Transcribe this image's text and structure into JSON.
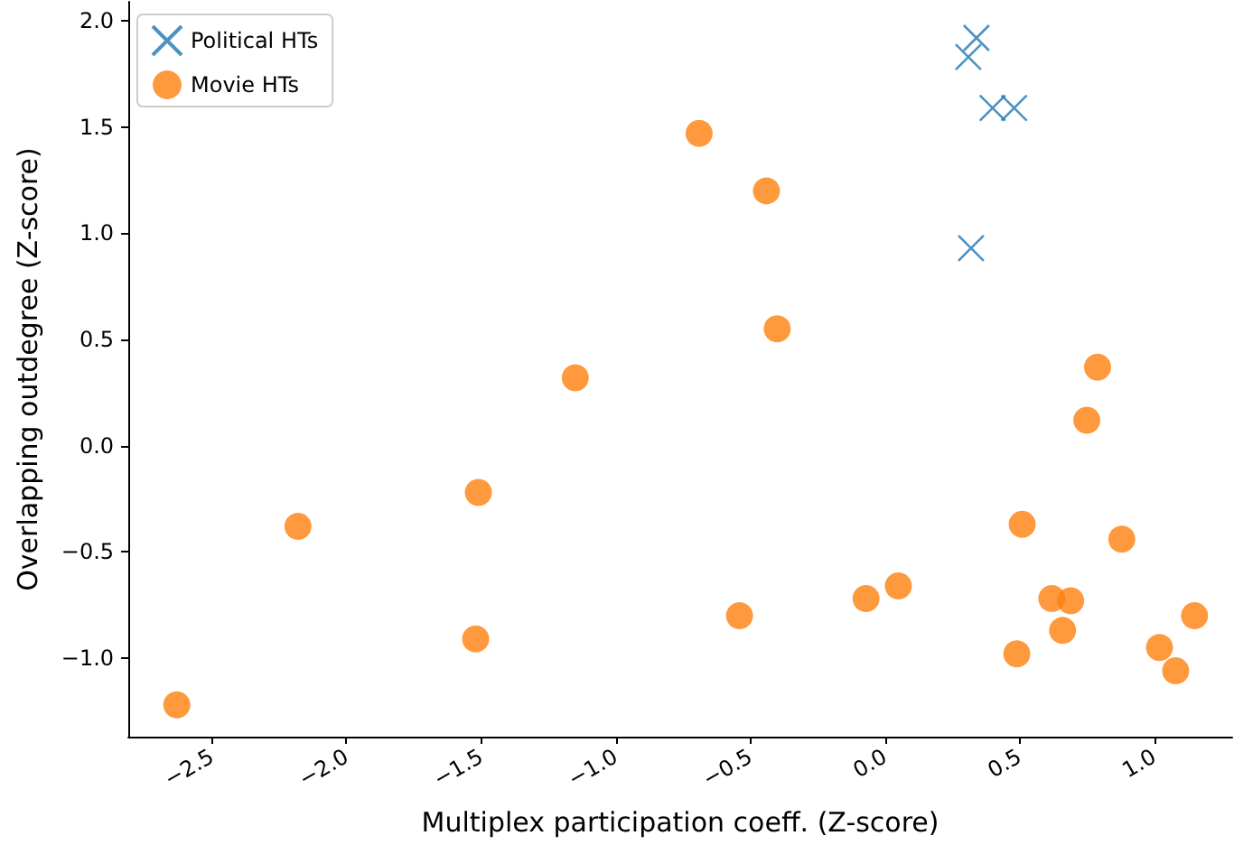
{
  "chart_data": {
    "type": "scatter",
    "xlabel": "Multiplex participation coeff. (Z-score)",
    "ylabel": "Overlapping outdegree (Z-score)",
    "xlim": [
      -2.81,
      1.29
    ],
    "xticks": [
      {
        "value": -2.5,
        "label": "−2.5"
      },
      {
        "value": -2.0,
        "label": "−2.0"
      },
      {
        "value": -1.5,
        "label": "−1.5"
      },
      {
        "value": -1.0,
        "label": "−1.0"
      },
      {
        "value": -0.5,
        "label": "−0.5"
      },
      {
        "value": 0.0,
        "label": "0.0"
      },
      {
        "value": 0.5,
        "label": "0.5"
      },
      {
        "value": 1.0,
        "label": "1.0"
      }
    ],
    "ylim": [
      -1.37,
      2.09
    ],
    "yticks": [
      {
        "value": -1.0,
        "label": "−1.0"
      },
      {
        "value": -0.5,
        "label": "−0.5"
      },
      {
        "value": 0.0,
        "label": "0.0"
      },
      {
        "value": 0.5,
        "label": "0.5"
      },
      {
        "value": 1.0,
        "label": "1.0"
      },
      {
        "value": 1.5,
        "label": "1.5"
      },
      {
        "value": 2.0,
        "label": "2.0"
      }
    ],
    "grid": false,
    "legend": "top left",
    "series": [
      {
        "name": "Political HTs",
        "color": "#1f77b4",
        "marker": "cross",
        "x": [
          0.34,
          0.31,
          0.4,
          0.48,
          0.32
        ],
        "values": [
          1.92,
          1.83,
          1.59,
          1.59,
          0.93
        ]
      },
      {
        "name": "Movie HTs",
        "color": "#ff7f0e",
        "marker": "circle",
        "x": [
          -2.63,
          -2.18,
          -1.51,
          -1.52,
          -1.15,
          -0.69,
          -0.44,
          -0.4,
          -0.54,
          -0.07,
          0.05,
          0.51,
          0.79,
          0.75,
          0.88,
          0.62,
          0.69,
          0.66,
          0.49,
          1.15,
          1.02,
          1.08
        ],
        "values": [
          -1.22,
          -0.38,
          -0.22,
          -0.91,
          0.32,
          1.47,
          1.2,
          0.55,
          -0.8,
          -0.72,
          -0.66,
          -0.37,
          0.37,
          0.12,
          -0.44,
          -0.72,
          -0.73,
          -0.87,
          -0.98,
          -0.8,
          -0.95,
          -1.06
        ]
      }
    ]
  }
}
